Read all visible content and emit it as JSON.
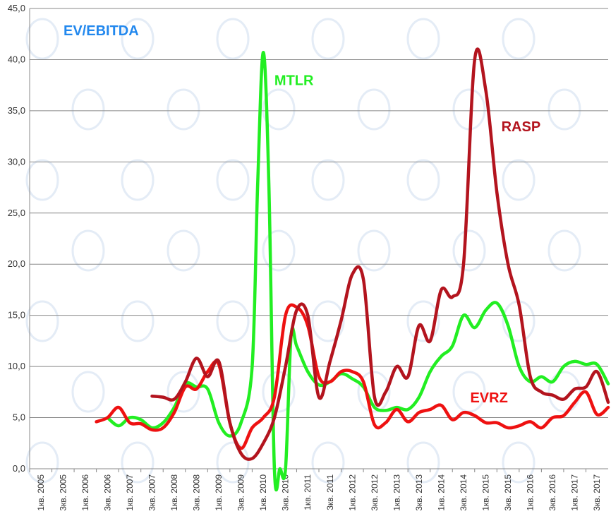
{
  "chart_data": {
    "type": "line",
    "title": "EV/EBITDA",
    "xlabel": "",
    "ylabel": "",
    "ylim": [
      0,
      45
    ],
    "yticks": [
      "0,0",
      "5,0",
      "10,0",
      "15,0",
      "20,0",
      "25,0",
      "30,0",
      "35,0",
      "40,0",
      "45,0"
    ],
    "categories": [
      "1кв. 2005",
      "3кв. 2005",
      "1кв. 2006",
      "3кв. 2006",
      "1кв. 2007",
      "3кв. 2007",
      "1кв. 2008",
      "3кв. 2008",
      "1кв. 2009",
      "3кв. 2009",
      "1кв. 2010",
      "3кв. 2010",
      "1кв. 2011",
      "3кв. 2011",
      "1кв. 2012",
      "3кв. 2012",
      "1кв. 2013",
      "3кв. 2013",
      "1кв. 2014",
      "3кв. 2014",
      "1кв. 2015",
      "3кв. 2015",
      "1кв. 2016",
      "3кв. 2016",
      "1кв. 2017",
      "3кв. 2017"
    ],
    "grid": true,
    "series": [
      {
        "name": "MTLR",
        "color": "#22ee22",
        "points": [
          [
            3,
            5.0
          ],
          [
            3.5,
            4.2
          ],
          [
            4,
            5.0
          ],
          [
            4.5,
            4.8
          ],
          [
            5,
            4.0
          ],
          [
            5.5,
            4.5
          ],
          [
            6,
            6.0
          ],
          [
            6.5,
            8.3
          ],
          [
            7,
            8.0
          ],
          [
            7.5,
            7.8
          ],
          [
            8,
            4.5
          ],
          [
            8.5,
            3.2
          ],
          [
            9,
            4.5
          ],
          [
            9.5,
            10.0
          ],
          [
            9.75,
            28.0
          ],
          [
            10,
            40.7
          ],
          [
            10.25,
            28.0
          ],
          [
            10.5,
            0.0
          ],
          [
            10.75,
            0.0
          ],
          [
            11,
            0.0
          ],
          [
            11.25,
            13.0
          ],
          [
            11.5,
            12.0
          ],
          [
            12,
            9.5
          ],
          [
            12.5,
            8.2
          ],
          [
            13,
            8.5
          ],
          [
            13.5,
            9.3
          ],
          [
            14,
            8.8
          ],
          [
            14.5,
            8.0
          ],
          [
            15,
            6.0
          ],
          [
            15.5,
            5.7
          ],
          [
            16,
            6.0
          ],
          [
            16.5,
            5.8
          ],
          [
            17,
            7.0
          ],
          [
            17.5,
            9.5
          ],
          [
            18,
            11.0
          ],
          [
            18.5,
            12.0
          ],
          [
            19,
            15.0
          ],
          [
            19.5,
            13.8
          ],
          [
            20,
            15.5
          ],
          [
            20.5,
            16.2
          ],
          [
            21,
            14.0
          ],
          [
            21.5,
            10.0
          ],
          [
            22,
            8.5
          ],
          [
            22.5,
            9.0
          ],
          [
            23,
            8.5
          ],
          [
            23.5,
            10.0
          ],
          [
            24,
            10.5
          ],
          [
            24.5,
            10.2
          ],
          [
            25,
            10.2
          ],
          [
            25.5,
            8.3
          ]
        ]
      },
      {
        "name": "RASP",
        "color": "#b3141e",
        "points": [
          [
            5,
            7.1
          ],
          [
            5.5,
            7.0
          ],
          [
            6,
            6.8
          ],
          [
            6.5,
            8.5
          ],
          [
            7,
            10.8
          ],
          [
            7.5,
            9.0
          ],
          [
            8,
            10.5
          ],
          [
            8.5,
            4.5
          ],
          [
            9,
            1.5
          ],
          [
            9.5,
            1.0
          ],
          [
            10,
            2.5
          ],
          [
            10.5,
            5.0
          ],
          [
            11,
            10.0
          ],
          [
            11.5,
            15.5
          ],
          [
            12,
            15.0
          ],
          [
            12.5,
            7.0
          ],
          [
            13,
            10.5
          ],
          [
            13.5,
            14.5
          ],
          [
            14,
            19.0
          ],
          [
            14.5,
            18.5
          ],
          [
            15,
            7.0
          ],
          [
            15.5,
            7.5
          ],
          [
            16,
            10.0
          ],
          [
            16.5,
            9.0
          ],
          [
            17,
            14.0
          ],
          [
            17.5,
            12.5
          ],
          [
            18,
            17.5
          ],
          [
            18.5,
            16.8
          ],
          [
            19,
            20.0
          ],
          [
            19.5,
            40.0
          ],
          [
            20,
            37.0
          ],
          [
            20.5,
            27.0
          ],
          [
            21,
            20.0
          ],
          [
            21.5,
            16.0
          ],
          [
            22,
            9.0
          ],
          [
            22.5,
            7.5
          ],
          [
            23,
            7.2
          ],
          [
            23.5,
            6.8
          ],
          [
            24,
            7.8
          ],
          [
            24.5,
            8.0
          ],
          [
            25,
            9.5
          ],
          [
            25.5,
            6.5
          ]
        ]
      },
      {
        "name": "EVRZ",
        "color": "#ee1111",
        "points": [
          [
            2.5,
            4.6
          ],
          [
            3,
            5.0
          ],
          [
            3.5,
            6.0
          ],
          [
            4,
            4.5
          ],
          [
            4.5,
            4.4
          ],
          [
            5,
            3.8
          ],
          [
            5.5,
            4.0
          ],
          [
            6,
            5.5
          ],
          [
            6.5,
            8.0
          ],
          [
            7,
            7.8
          ],
          [
            7.5,
            9.5
          ],
          [
            8,
            10.2
          ],
          [
            8.5,
            4.5
          ],
          [
            9,
            2.0
          ],
          [
            9.5,
            4.0
          ],
          [
            10,
            5.0
          ],
          [
            10.5,
            7.0
          ],
          [
            11,
            15.0
          ],
          [
            11.5,
            15.8
          ],
          [
            12,
            14.0
          ],
          [
            12.5,
            9.0
          ],
          [
            13,
            8.5
          ],
          [
            13.5,
            9.5
          ],
          [
            14,
            9.5
          ],
          [
            14.5,
            8.5
          ],
          [
            15,
            4.3
          ],
          [
            15.5,
            4.5
          ],
          [
            16,
            5.8
          ],
          [
            16.5,
            4.6
          ],
          [
            17,
            5.5
          ],
          [
            17.5,
            5.8
          ],
          [
            18,
            6.2
          ],
          [
            18.5,
            4.8
          ],
          [
            19,
            5.5
          ],
          [
            19.5,
            5.2
          ],
          [
            20,
            4.5
          ],
          [
            20.5,
            4.5
          ],
          [
            21,
            4.0
          ],
          [
            21.5,
            4.2
          ],
          [
            22,
            4.6
          ],
          [
            22.5,
            4.0
          ],
          [
            23,
            5.0
          ],
          [
            23.5,
            5.2
          ],
          [
            24,
            6.5
          ],
          [
            24.5,
            7.5
          ],
          [
            25,
            5.3
          ],
          [
            25.5,
            6.0
          ]
        ]
      }
    ],
    "annotations": [
      {
        "text": "MTLR",
        "color": "#22ee22",
        "x": 10.5,
        "y": 37.5
      },
      {
        "text": "RASP",
        "color": "#b3141e",
        "x": 20.7,
        "y": 33.0
      },
      {
        "text": "EVRZ",
        "color": "#ee1111",
        "x": 19.3,
        "y": 6.5
      }
    ],
    "title_color": "#2288ee"
  }
}
